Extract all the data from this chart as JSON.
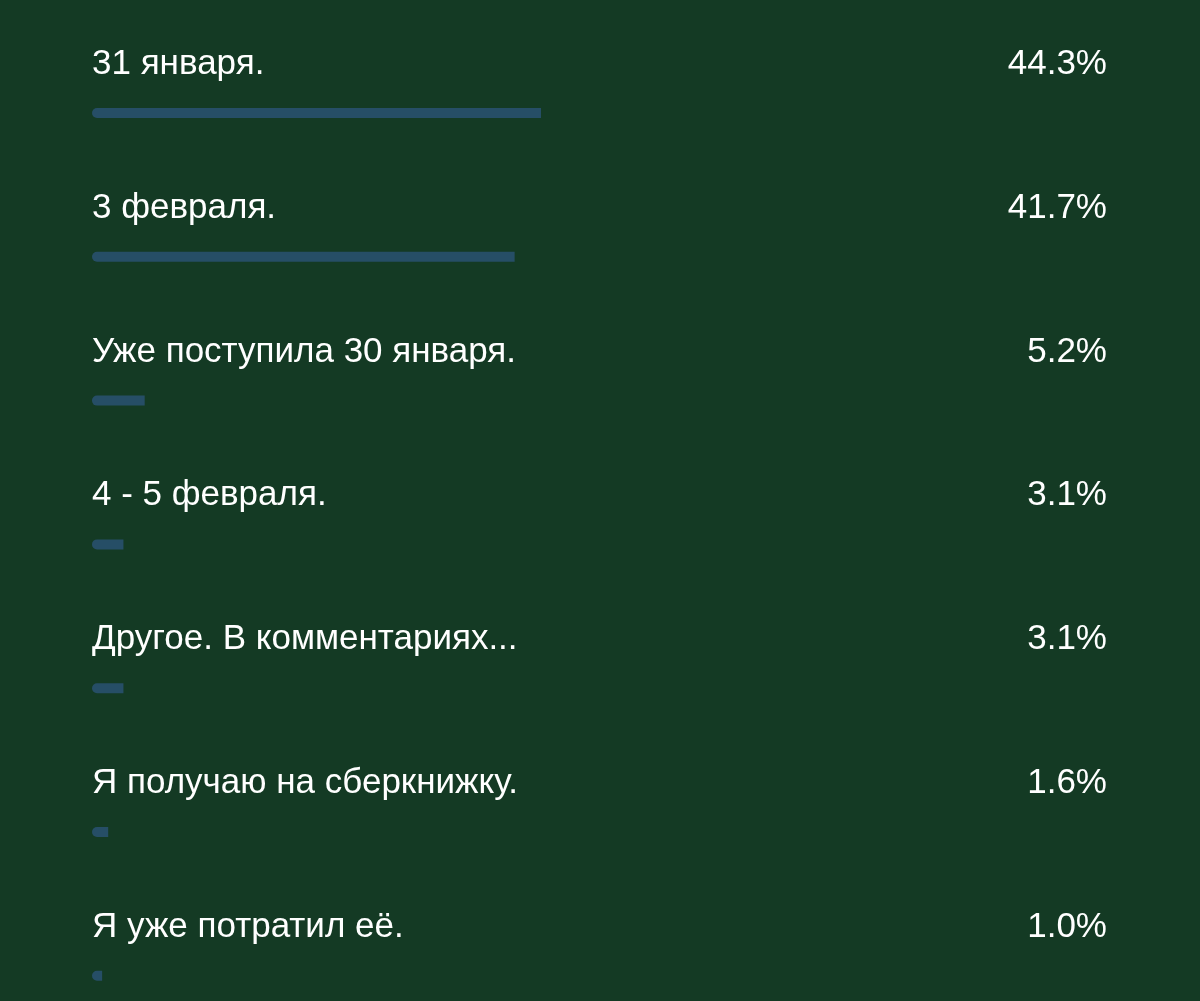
{
  "chart_data": {
    "type": "bar",
    "orientation": "horizontal",
    "categories": [
      "31 января.",
      "3 февраля.",
      "Уже поступила 30 января.",
      "4 - 5 февраля.",
      "Другое. В комментариях...",
      "Я получаю на сберкнижку.",
      "Я уже потратил её."
    ],
    "values": [
      44.3,
      41.7,
      5.2,
      3.1,
      3.1,
      1.6,
      1.0
    ],
    "value_labels": [
      "44.3%",
      "41.7%",
      "5.2%",
      "3.1%",
      "3.1%",
      "1.6%",
      "1.0%"
    ],
    "color": "#264e66"
  }
}
